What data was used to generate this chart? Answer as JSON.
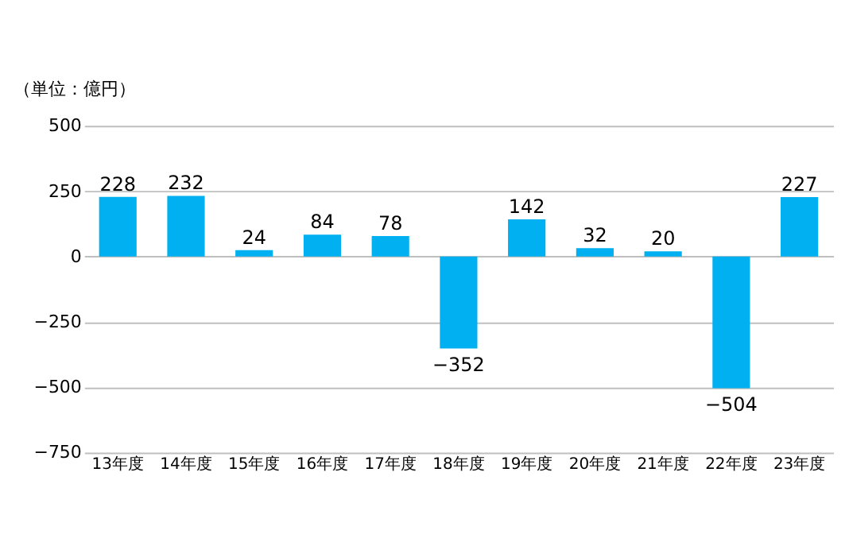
{
  "chart_data": {
    "type": "bar",
    "ylabel": "（単位：億円）",
    "categories": [
      "13年度",
      "14年度",
      "15年度",
      "16年度",
      "17年度",
      "18年度",
      "19年度",
      "20年度",
      "21年度",
      "22年度",
      "23年度"
    ],
    "values": [
      228,
      232,
      24,
      84,
      78,
      -352,
      142,
      32,
      20,
      -504,
      227
    ],
    "color": "#00b0f0",
    "ylim": [
      -750,
      500
    ],
    "yticks": [
      -750,
      -500,
      -250,
      0,
      250,
      500
    ],
    "grid": "y",
    "data_labels": true
  }
}
